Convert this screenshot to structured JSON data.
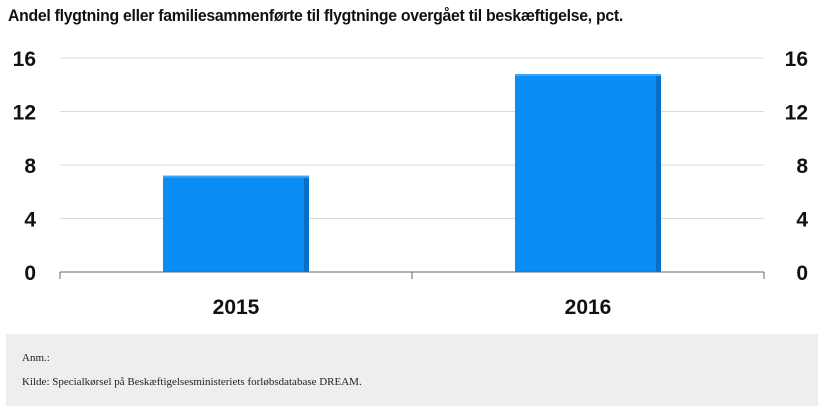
{
  "title": "Andel flygtning eller familiesammenførte til flygtninge overgået til beskæftigelse, pct.",
  "footer": {
    "note": "Anm.:",
    "source": "Kilde: Specialkørsel på Beskæftigelsesministeriets forløbsdatabase DREAM."
  },
  "colors": {
    "bar": "#0a8ef6",
    "bar_shade": "#0770c4",
    "grid": "#d9d9d9",
    "axis": "#666666"
  },
  "chart_data": {
    "type": "bar",
    "categories": [
      "2015",
      "2016"
    ],
    "values": [
      7.2,
      14.8
    ],
    "ylim": [
      0,
      16
    ],
    "yticks": [
      "0",
      "4",
      "8",
      "12",
      "16"
    ],
    "ytick_values": [
      0,
      4,
      8,
      12,
      16
    ],
    "grid": true,
    "secondary_axis": true,
    "xlabel": "",
    "ylabel": ""
  }
}
